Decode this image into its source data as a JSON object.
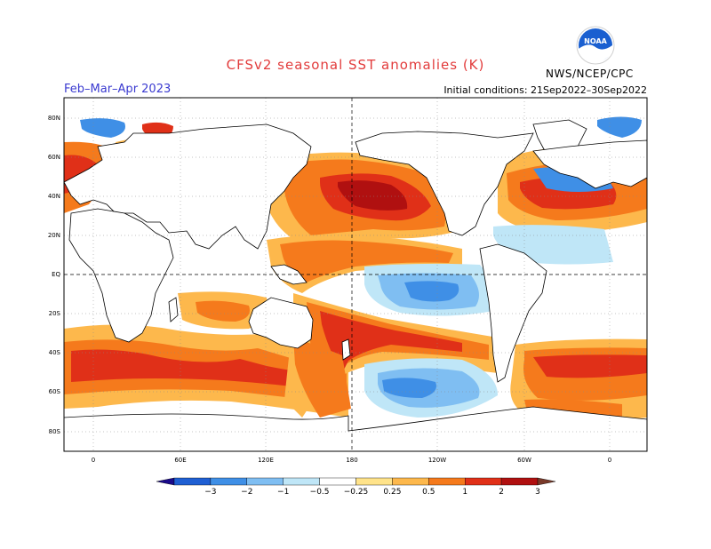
{
  "header": {
    "title": "CFSv2 seasonal SST anomalies (K)",
    "season": "Feb–Mar–Apr 2023",
    "initial_conditions": "Initial conditions: 21Sep2022–30Sep2022",
    "agency": "NWS/NCEP/CPC",
    "logo_text": "NOAA"
  },
  "map": {
    "lat_labels": [
      "80N",
      "60N",
      "40N",
      "20N",
      "EQ",
      "20S",
      "40S",
      "60S",
      "80S"
    ],
    "lon_labels": [
      "0",
      "60E",
      "120E",
      "180",
      "120W",
      "60W",
      "0"
    ]
  },
  "colorbar": {
    "labels": [
      "−3",
      "−2",
      "−1",
      "−0.5",
      "−0.25",
      "0.25",
      "0.5",
      "1",
      "2",
      "3"
    ],
    "colors": [
      "#1a0a8a",
      "#1f5fd3",
      "#3f8fe6",
      "#7fbef2",
      "#bfe6f7",
      "#ffffff",
      "#ffe38a",
      "#fdb84c",
      "#f57a1c",
      "#e03018",
      "#b01010",
      "#7a3a2a"
    ]
  }
}
